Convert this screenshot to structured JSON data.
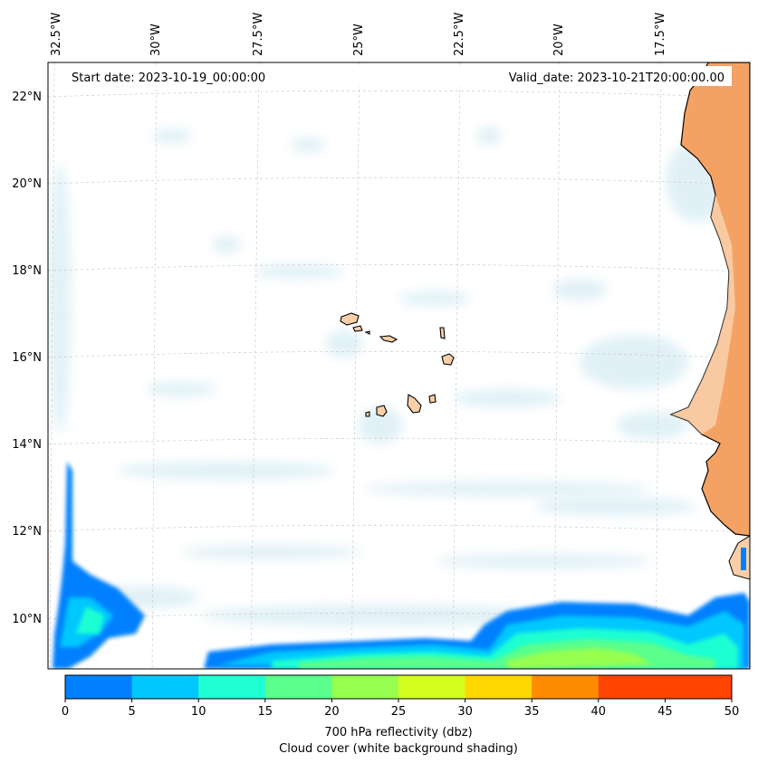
{
  "header": {
    "start_date": "Start date: 2023-10-19_00:00:00",
    "valid_date": "Valid_date: 2023-10-21T20:00:00.00"
  },
  "map": {
    "lon_labels": [
      "32.5°W",
      "30°W",
      "27.5°W",
      "25°W",
      "22.5°W",
      "20°W",
      "17.5°W"
    ],
    "lat_labels": [
      "22°N",
      "20°N",
      "18°N",
      "16°N",
      "14°N",
      "12°N",
      "10°N"
    ],
    "land_color": "#f4a263",
    "island_color": "#f8cfa9"
  },
  "colorbar": {
    "ticks": [
      "0",
      "5",
      "10",
      "15",
      "20",
      "25",
      "30",
      "35",
      "40",
      "45",
      "50"
    ],
    "colors": [
      "#0080ff",
      "#00c8ff",
      "#1effd2",
      "#5aff8c",
      "#96ff50",
      "#d2ff1e",
      "#ffd700",
      "#ff8c00",
      "#ff4500",
      "#ff4500"
    ],
    "label_line1": "700 hPa reflectivity (dbz)",
    "label_line2": "Cloud cover (white background shading)"
  }
}
